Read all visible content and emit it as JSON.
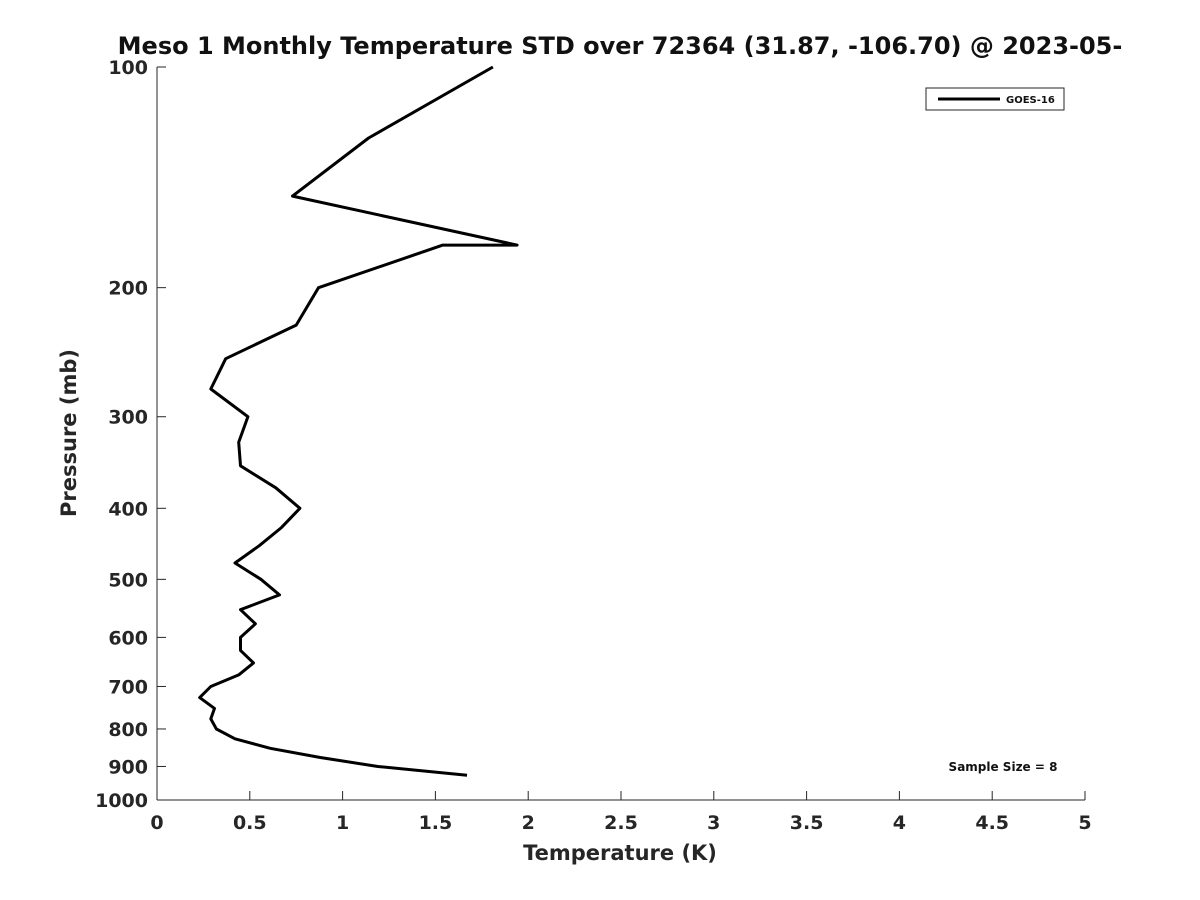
{
  "chart_data": {
    "type": "line",
    "title": "Meso 1 Monthly Temperature STD over 72364 (31.87, -106.70) @ 2023-05-",
    "xlabel": "Temperature (K)",
    "ylabel": "Pressure (mb)",
    "xlim": [
      0,
      5
    ],
    "ylim": [
      100,
      1000
    ],
    "yscale": "log",
    "y_reversed": true,
    "x_ticks": [
      "0",
      "0.5",
      "1",
      "1.5",
      "2",
      "2.5",
      "3",
      "3.5",
      "4",
      "4.5",
      "5"
    ],
    "y_ticks": [
      "100",
      "200",
      "300",
      "400",
      "500",
      "600",
      "700",
      "800",
      "900",
      "1000"
    ],
    "grid": false,
    "legend_position": "top-right",
    "series": [
      {
        "name": "GOES-16",
        "color": "#000000",
        "points": [
          [
            1.81,
            100
          ],
          [
            1.14,
            125
          ],
          [
            0.73,
            150
          ],
          [
            1.94,
            175
          ],
          [
            1.54,
            175
          ],
          [
            0.87,
            200
          ],
          [
            0.75,
            225
          ],
          [
            0.37,
            250
          ],
          [
            0.29,
            275
          ],
          [
            0.49,
            300
          ],
          [
            0.44,
            325
          ],
          [
            0.45,
            350
          ],
          [
            0.64,
            375
          ],
          [
            0.77,
            400
          ],
          [
            0.67,
            425
          ],
          [
            0.55,
            450
          ],
          [
            0.42,
            475
          ],
          [
            0.56,
            500
          ],
          [
            0.66,
            525
          ],
          [
            0.45,
            550
          ],
          [
            0.53,
            575
          ],
          [
            0.45,
            600
          ],
          [
            0.45,
            625
          ],
          [
            0.52,
            650
          ],
          [
            0.44,
            675
          ],
          [
            0.29,
            700
          ],
          [
            0.23,
            725
          ],
          [
            0.31,
            750
          ],
          [
            0.29,
            775
          ],
          [
            0.32,
            800
          ],
          [
            0.42,
            825
          ],
          [
            0.61,
            850
          ],
          [
            0.88,
            875
          ],
          [
            1.19,
            900
          ],
          [
            1.67,
            925
          ]
        ]
      }
    ],
    "annotation": "Sample Size = 8"
  }
}
